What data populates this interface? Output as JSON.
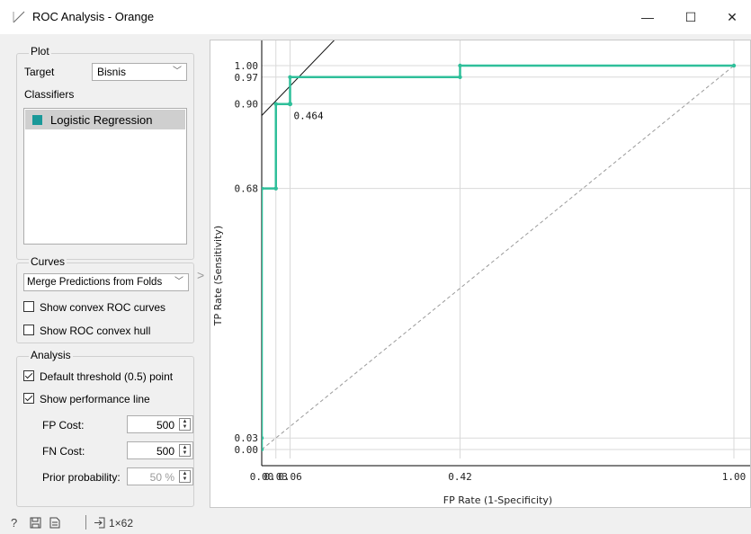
{
  "window": {
    "title": "ROC Analysis - Orange",
    "minimize": "—",
    "maximize": "☐",
    "close": "✕"
  },
  "plot_group": {
    "title": "Plot",
    "target_label": "Target",
    "target_value": "Bisnis",
    "classifiers_label": "Classifiers",
    "classifiers": [
      {
        "label": "Logistic Regression",
        "color": "#1a9999"
      }
    ]
  },
  "curves_group": {
    "title": "Curves",
    "mode": "Merge Predictions from Folds",
    "show_convex_curves": {
      "label": "Show convex ROC curves",
      "checked": false
    },
    "show_convex_hull": {
      "label": "Show ROC convex hull",
      "checked": false
    }
  },
  "analysis_group": {
    "title": "Analysis",
    "default_threshold": {
      "label": "Default threshold (0.5) point",
      "checked": true
    },
    "performance_line": {
      "label": "Show performance line",
      "checked": true
    },
    "fp_cost": {
      "label": "FP Cost:",
      "value": "500"
    },
    "fn_cost": {
      "label": "FN Cost:",
      "value": "500"
    },
    "prior_probability": {
      "label": "Prior probability:",
      "value": "50 %"
    }
  },
  "statusbar": {
    "help_icon": "help-icon",
    "save_icon": "save-icon",
    "report_icon": "report-icon",
    "input_icon": "input-icon",
    "data_summary": "1×62"
  },
  "chart_data": {
    "type": "line",
    "xlabel": "FP Rate (1-Specificity)",
    "ylabel": "TP Rate (Sensitivity)",
    "xlim": [
      0,
      1
    ],
    "ylim": [
      0,
      1
    ],
    "x_ticks": [
      0.0,
      0.03,
      0.06,
      0.42,
      1.0
    ],
    "x_tick_labels": [
      "0.00",
      "0.03",
      "0.06",
      "0.42",
      "1.00"
    ],
    "y_ticks": [
      0.0,
      0.03,
      0.68,
      0.9,
      0.97,
      1.0
    ],
    "y_tick_labels": [
      "0.00",
      "0.03",
      "0.68",
      "0.90",
      "0.97",
      "1.00"
    ],
    "grid": true,
    "series": [
      {
        "name": "Logistic Regression",
        "color": "#2fbf9a",
        "x": [
          0.0,
          0.0,
          0.0,
          0.03,
          0.03,
          0.06,
          0.06,
          0.42,
          0.42,
          1.0
        ],
        "y": [
          0.0,
          0.03,
          0.68,
          0.68,
          0.9,
          0.9,
          0.97,
          0.97,
          1.0,
          1.0
        ]
      }
    ],
    "diagonal": {
      "x": [
        0,
        1
      ],
      "y": [
        0,
        1
      ],
      "style": "dashed"
    },
    "performance_line": {
      "x": [
        0.0,
        0.18
      ],
      "y": [
        0.87,
        1.1
      ]
    },
    "threshold_point": {
      "x": 0.06,
      "y": 0.9,
      "label": "0.464"
    }
  }
}
